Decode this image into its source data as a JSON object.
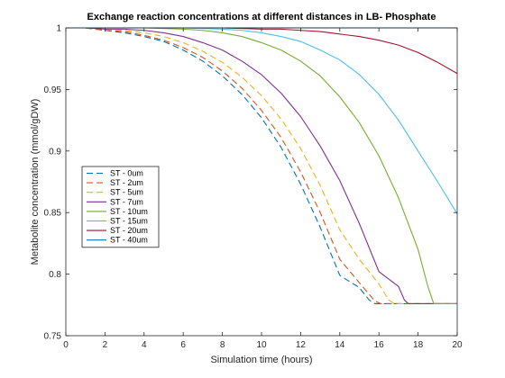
{
  "chart_data": {
    "type": "line",
    "title": "Exchange reaction concentrations at different distances in LB- Phosphate",
    "xlabel": "Simulation time (hours)",
    "ylabel": "Metabolite concentration (mmol/gDW)",
    "xlim": [
      0,
      20
    ],
    "ylim": [
      0.75,
      1
    ],
    "xticks": [
      0,
      2,
      4,
      6,
      8,
      10,
      12,
      14,
      16,
      18,
      20
    ],
    "yticks": [
      0.75,
      0.8,
      0.85,
      0.9,
      0.95,
      1
    ],
    "ytick_labels": [
      "0.75",
      "0.8",
      "0.85",
      "0.9",
      "0.95",
      "1"
    ],
    "grid": false,
    "legend_position": "left-middle",
    "series": [
      {
        "name": "ST - 0um",
        "color": "#0072BD",
        "style": "dashed",
        "x": [
          0,
          1,
          2,
          3,
          4,
          5,
          6,
          7,
          8,
          9,
          10,
          11,
          12,
          13,
          14,
          15,
          15.5,
          15.8,
          16,
          20
        ],
        "y": [
          1,
          1,
          0.998,
          0.996,
          0.993,
          0.989,
          0.982,
          0.973,
          0.961,
          0.946,
          0.927,
          0.903,
          0.873,
          0.838,
          0.799,
          0.789,
          0.779,
          0.776,
          0.776,
          0.776
        ]
      },
      {
        "name": "ST - 2um",
        "color": "#D95319",
        "style": "dashed",
        "x": [
          0,
          1,
          2,
          3,
          4,
          5,
          6,
          7,
          8,
          9,
          10,
          11,
          12,
          13,
          14,
          15,
          15.8,
          16.1,
          16.3,
          20
        ],
        "y": [
          1,
          1,
          0.998,
          0.997,
          0.994,
          0.99,
          0.984,
          0.976,
          0.965,
          0.951,
          0.933,
          0.911,
          0.883,
          0.85,
          0.812,
          0.793,
          0.778,
          0.776,
          0.776,
          0.776
        ]
      },
      {
        "name": "ST - 5um",
        "color": "#EDB120",
        "style": "dashed",
        "x": [
          0,
          1,
          2,
          3,
          4,
          5,
          6,
          7,
          8,
          9,
          10,
          11,
          12,
          13,
          14,
          15,
          16,
          16.5,
          16.8,
          20
        ],
        "y": [
          1,
          1,
          0.999,
          0.998,
          0.996,
          0.993,
          0.988,
          0.981,
          0.972,
          0.96,
          0.945,
          0.926,
          0.902,
          0.872,
          0.836,
          0.812,
          0.792,
          0.779,
          0.776,
          0.776
        ]
      },
      {
        "name": "ST - 7um",
        "color": "#7E2F8E",
        "style": "solid",
        "x": [
          0,
          1,
          2,
          3,
          4,
          5,
          6,
          7,
          8,
          9,
          10,
          11,
          12,
          13,
          14,
          15,
          16,
          17,
          17.3,
          17.5,
          20
        ],
        "y": [
          1,
          1,
          0.999,
          0.999,
          0.998,
          0.996,
          0.993,
          0.988,
          0.982,
          0.973,
          0.962,
          0.947,
          0.928,
          0.904,
          0.876,
          0.841,
          0.802,
          0.79,
          0.779,
          0.776,
          0.776
        ]
      },
      {
        "name": "ST - 10um",
        "color": "#77AC30",
        "style": "solid",
        "x": [
          0,
          2,
          4,
          6,
          7,
          8,
          9,
          10,
          11,
          12,
          13,
          14,
          15,
          16,
          17,
          18,
          18.5,
          18.8,
          20
        ],
        "y": [
          1,
          1,
          1,
          0.999,
          0.998,
          0.996,
          0.993,
          0.988,
          0.982,
          0.973,
          0.961,
          0.944,
          0.923,
          0.896,
          0.862,
          0.82,
          0.79,
          0.776,
          0.776
        ]
      },
      {
        "name": "ST - 15um",
        "color": "#4DBEEE",
        "style": "solid",
        "x": [
          0,
          4,
          6,
          8,
          9,
          10,
          11,
          12,
          13,
          14,
          15,
          16,
          17,
          18,
          19,
          20
        ],
        "y": [
          1,
          1,
          1,
          0.999,
          0.998,
          0.996,
          0.993,
          0.989,
          0.982,
          0.974,
          0.962,
          0.946,
          0.925,
          0.9,
          0.875,
          0.849
        ]
      },
      {
        "name": "ST - 20um",
        "color": "#A2142F",
        "style": "solid",
        "x": [
          0,
          6,
          8,
          10,
          11,
          12,
          13,
          14,
          15,
          16,
          17,
          18,
          19,
          20
        ],
        "y": [
          1,
          1,
          1,
          0.999,
          0.999,
          0.998,
          0.997,
          0.995,
          0.993,
          0.99,
          0.986,
          0.98,
          0.972,
          0.963
        ]
      },
      {
        "name": "ST - 40um",
        "color": "#0072BD",
        "style": "solid",
        "x": [
          0,
          20
        ],
        "y": [
          1,
          1
        ]
      }
    ]
  }
}
